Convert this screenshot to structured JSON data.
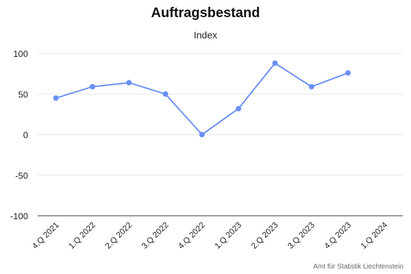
{
  "chart_data": {
    "type": "line",
    "title": "Auftragsbestand",
    "subtitle": "Index",
    "xlabel": "",
    "ylabel": "",
    "categories": [
      "4.Q 2021",
      "1.Q 2022",
      "2.Q 2022",
      "3.Q 2022",
      "4.Q 2022",
      "1.Q 2023",
      "2.Q 2023",
      "3.Q 2023",
      "4.Q 2023",
      "1.Q 2024"
    ],
    "series": [
      {
        "values": [
          45,
          59,
          64,
          50,
          0,
          32,
          88,
          59,
          76,
          null
        ],
        "color": "#6b8ff5"
      }
    ],
    "ylim": [
      -100,
      100
    ],
    "yticks": [
      100,
      50,
      0,
      -50,
      -100
    ],
    "grid": true,
    "legend": "none",
    "credit": "Amt für Statistik Liechtenstein"
  }
}
